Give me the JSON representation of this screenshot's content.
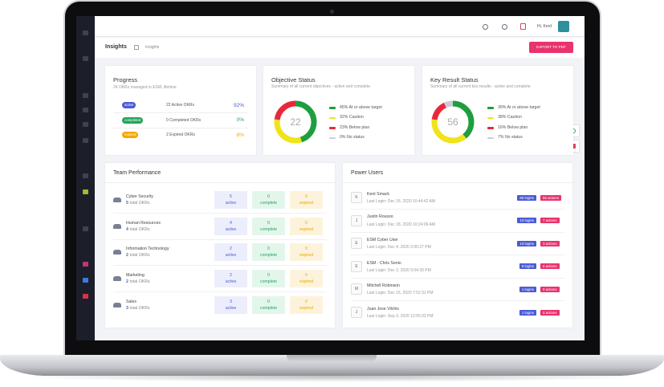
{
  "header": {
    "greeting": "Hi, Kerd",
    "title": "Insights",
    "breadcrumb": "Insights",
    "export_button": "EXPORT TO PDF"
  },
  "progress": {
    "title": "Progress",
    "subtitle": "24 OKRs managed in ESM, lifetime",
    "rows": [
      {
        "badge": "active",
        "text": "22 Active OKRs",
        "percent": "92%",
        "color": "#4b5bd6"
      },
      {
        "badge": "completed",
        "text": "0 Completed OKRs",
        "percent": "0%",
        "color": "#22a55b"
      },
      {
        "badge": "expired",
        "text": "2 Expired OKRs",
        "percent": "8%",
        "color": "#f2a900"
      }
    ]
  },
  "objective_status": {
    "title": "Objective Status",
    "subtitle": "Summary of all current objectives - active and complete.",
    "center": 22,
    "segments": [
      {
        "label": "45% At or above target",
        "value": 45,
        "color": "#1e9e3e"
      },
      {
        "label": "32% Caution",
        "value": 32,
        "color": "#f0e31a"
      },
      {
        "label": "23% Below plan",
        "value": 23,
        "color": "#e8283a"
      },
      {
        "label": "0% No status",
        "value": 0,
        "color": "#c9cdd6"
      }
    ]
  },
  "key_result_status": {
    "title": "Key Result Status",
    "subtitle": "Summary of all current key results - active and complete.",
    "center": 56,
    "segments": [
      {
        "label": "39% At or above target",
        "value": 39,
        "color": "#1e9e3e"
      },
      {
        "label": "38% Caution",
        "value": 38,
        "color": "#f0e31a"
      },
      {
        "label": "16% Below plan",
        "value": 16,
        "color": "#e8283a"
      },
      {
        "label": "7% No status",
        "value": 7,
        "color": "#c9cdd6"
      }
    ]
  },
  "team_performance": {
    "title": "Team Performance",
    "teams": [
      {
        "name": "Cyber Security",
        "total": 5,
        "total_label": "total OKRs",
        "stats": [
          {
            "value": 5,
            "label": "active"
          },
          {
            "value": 0,
            "label": "complete"
          },
          {
            "value": 0,
            "label": "expired"
          }
        ]
      },
      {
        "name": "Human Resources",
        "total": 4,
        "total_label": "total OKRs",
        "stats": [
          {
            "value": 4,
            "label": "active"
          },
          {
            "value": 0,
            "label": "complete"
          },
          {
            "value": 0,
            "label": "expired"
          }
        ]
      },
      {
        "name": "Information Technology",
        "total": 2,
        "total_label": "total OKRs",
        "stats": [
          {
            "value": 2,
            "label": "active"
          },
          {
            "value": 0,
            "label": "complete"
          },
          {
            "value": 0,
            "label": "expired"
          }
        ]
      },
      {
        "name": "Marketing",
        "total": 2,
        "total_label": "total OKRs",
        "stats": [
          {
            "value": 2,
            "label": "active"
          },
          {
            "value": 0,
            "label": "complete"
          },
          {
            "value": 0,
            "label": "expired"
          }
        ]
      },
      {
        "name": "Sales",
        "total": 3,
        "total_label": "total OKRs",
        "stats": [
          {
            "value": 3,
            "label": "active"
          },
          {
            "value": 0,
            "label": "complete"
          },
          {
            "value": 0,
            "label": "expired"
          }
        ]
      }
    ]
  },
  "power_users": {
    "title": "Power Users",
    "users": [
      {
        "initial": "K",
        "name": "Kent Smack",
        "last_login": "Last Login: Dec 18, 2020 10:44:42 AM",
        "logins": "85 logins",
        "actions": "56 actions"
      },
      {
        "initial": "J",
        "name": "Justin Rousso",
        "last_login": "Last Login: Dec 18, 2020 10:24:06 AM",
        "logins": "10 logins",
        "actions": "7 actions"
      },
      {
        "initial": "E",
        "name": "ESM Cyber User",
        "last_login": "Last Login: Dec 4, 2020 2:00:27 PM",
        "logins": "10 logins",
        "actions": "3 actions"
      },
      {
        "initial": "E",
        "name": "ESM - Chris Senio",
        "last_login": "Last Login: Dec 2, 2020 5:04:39 PM",
        "logins": "9 logins",
        "actions": "6 actions"
      },
      {
        "initial": "M",
        "name": "Mitchell Robinson",
        "last_login": "Last Login: Dec 16, 2020 7:52:31 PM",
        "logins": "1 logins",
        "actions": "0 actions"
      },
      {
        "initial": "J",
        "name": "Juan Jose Vilchis",
        "last_login": "Last Login: Sep 3, 2020 12:05:32 PM",
        "logins": "1 logins",
        "actions": "0 actions"
      }
    ]
  }
}
